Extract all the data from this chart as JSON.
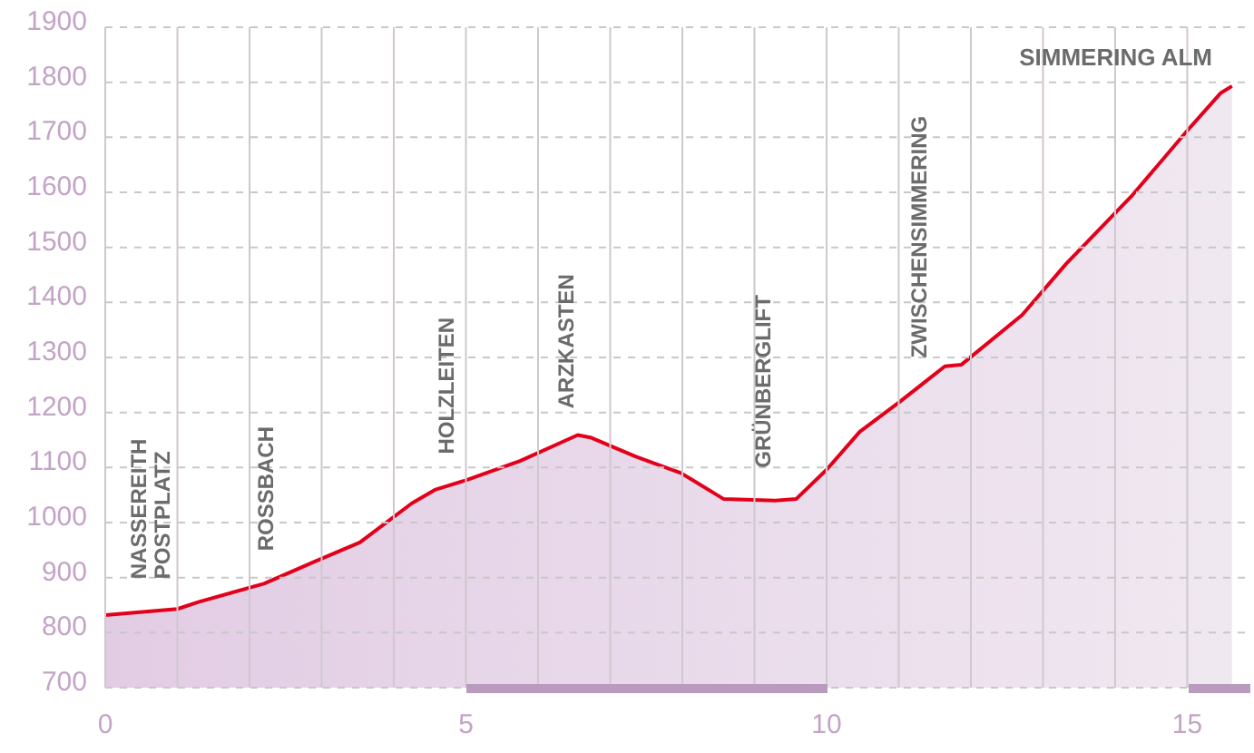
{
  "chart_data": {
    "type": "area",
    "x": [
      0,
      1.0,
      1.3,
      2.2,
      2.9,
      3.53,
      4.25,
      4.58,
      5.0,
      5.75,
      6.55,
      6.74,
      7.35,
      7.98,
      8.57,
      9.29,
      9.58,
      10.0,
      10.46,
      11.01,
      11.64,
      11.87,
      12.71,
      13.32,
      14.24,
      15.0,
      15.46,
      15.62
    ],
    "series": [
      {
        "color": "#e2001a",
        "values": [
          832,
          843,
          856,
          889,
          929,
          964,
          1035,
          1060,
          1077,
          1112,
          1159,
          1154,
          1120,
          1090,
          1043,
          1040,
          1043,
          1096,
          1165,
          1219,
          1284,
          1287,
          1377,
          1470,
          1595,
          1712,
          1780,
          1793
        ]
      }
    ],
    "xlim": [
      0,
      15.9
    ],
    "ylim": [
      700,
      1900
    ],
    "xticks": [
      0,
      {
        "value": 1,
        "label": null
      },
      {
        "value": 2,
        "label": null
      },
      {
        "value": 3,
        "label": null
      },
      {
        "value": 4,
        "label": null
      },
      5,
      {
        "value": 6,
        "label": null
      },
      {
        "value": 7,
        "label": null
      },
      {
        "value": 8,
        "label": null
      },
      {
        "value": 9,
        "label": null
      },
      10,
      {
        "value": 11,
        "label": null
      },
      {
        "value": 12,
        "label": null
      },
      {
        "value": 13,
        "label": null
      },
      {
        "value": 14,
        "label": null
      },
      15
    ],
    "yticks": [
      700,
      800,
      900,
      1000,
      1100,
      1200,
      1300,
      1400,
      1500,
      1600,
      1700,
      1800,
      1900
    ],
    "grid": true,
    "marker": "none",
    "line_style": "solid",
    "annotations": [
      {
        "text": "NASSEREITH POSTPLATZ",
        "x": 0.6,
        "y": 838
      },
      {
        "text": "ROSSBACH",
        "x": 2.2,
        "y": 889
      },
      {
        "text": "HOLZLEITEN",
        "x": 4.7,
        "y": 1065
      },
      {
        "text": "ARZKASTEN",
        "x": 6.37,
        "y": 1148
      },
      {
        "text": "GRÜNBERGLIFT",
        "x": 9.1,
        "y": 1040
      },
      {
        "text": "ZWISCHENSIMMERING",
        "x": 11.26,
        "y": 1240
      },
      "SIMMERING ALM"
    ]
  }
}
